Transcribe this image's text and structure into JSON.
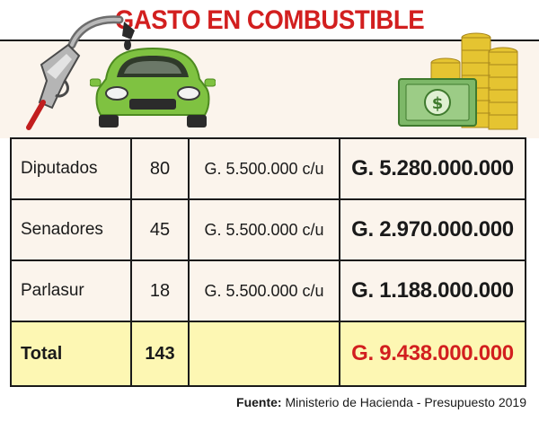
{
  "header": {
    "title": "GASTO EN COMBUSTIBLE"
  },
  "table": {
    "rows": [
      {
        "name": "Diputados",
        "count": "80",
        "unit_cost": "G. 5.500.000 c/u",
        "total": "G. 5.280.000.000"
      },
      {
        "name": "Senadores",
        "count": "45",
        "unit_cost": "G. 5.500.000 c/u",
        "total": "G. 2.970.000.000"
      },
      {
        "name": "Parlasur",
        "count": "18",
        "unit_cost": "G. 5.500.000 c/u",
        "total": "G. 1.188.000.000"
      }
    ],
    "total_row": {
      "label": "Total",
      "count": "143",
      "unit_cost": "",
      "total": "G. 9.438.000.000"
    }
  },
  "source": {
    "label": "Fuente:",
    "text": "Ministerio de Hacienda - Presupuesto 2019"
  },
  "icons": {
    "pump": "fuel-nozzle-icon",
    "car": "car-icon",
    "money": "money-stack-icon"
  },
  "colors": {
    "title_red": "#d21f1f",
    "total_red": "#d21f1f",
    "car_green": "#7fc241",
    "total_row_bg": "#fdf7b3",
    "table_bg": "#fbf4ec"
  }
}
